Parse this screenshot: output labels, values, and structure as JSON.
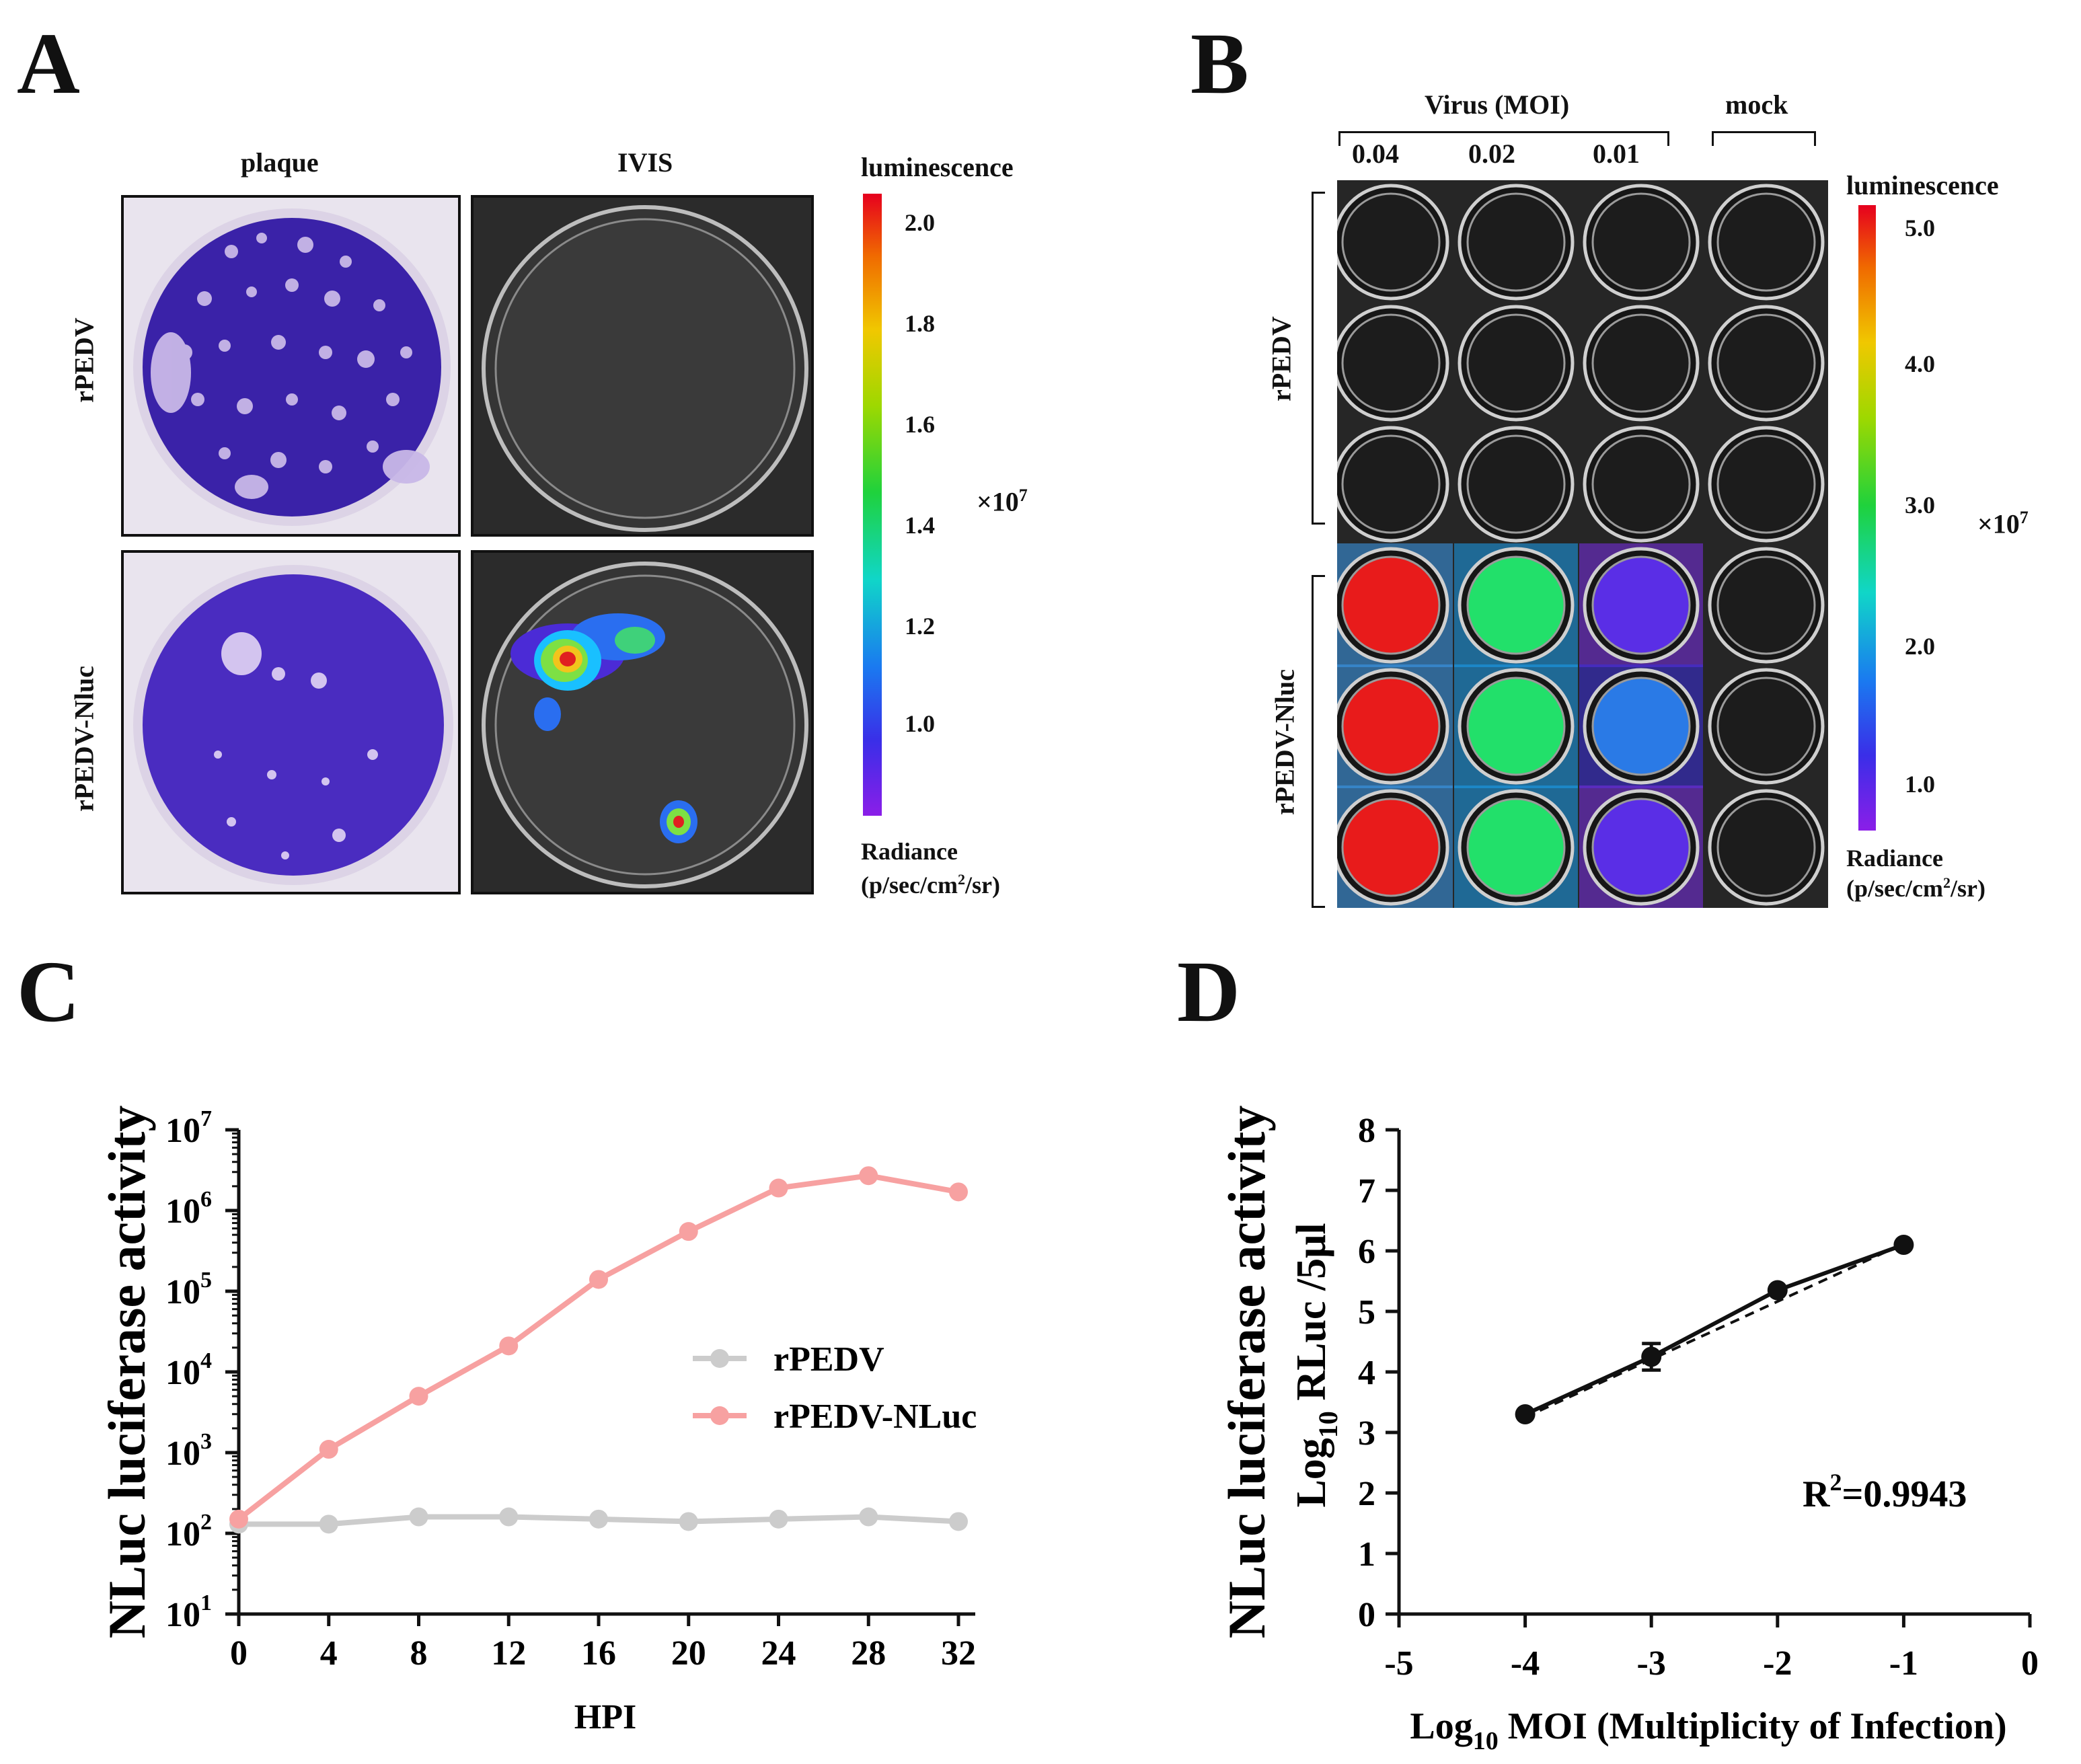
{
  "panels": {
    "a": "A",
    "b": "B",
    "c": "C",
    "d": "D"
  },
  "panel_a": {
    "columns": [
      "plaque",
      "IVIS"
    ],
    "rows": [
      "rPEDV",
      "rPEDV-Nluc"
    ],
    "colorbar": {
      "title": "luminescence",
      "ticks": [
        "2.0",
        "1.8",
        "1.6",
        "1.4",
        "1.2",
        "1.0"
      ],
      "multiplier": "×10",
      "multiplier_exp": "7",
      "unit_line1": "Radiance",
      "unit_line2_a": "(p/sec/cm",
      "unit_line2_sup": "2",
      "unit_line2_b": "/sr)"
    }
  },
  "panel_b": {
    "group_virus": "Virus (MOI)",
    "group_mock": "mock",
    "moi": [
      "0.04",
      "0.02",
      "0.01"
    ],
    "rows": [
      "rPEDV",
      "rPEDV-Nluc"
    ],
    "colorbar": {
      "title": "luminescence",
      "ticks": [
        "5.0",
        "4.0",
        "3.0",
        "2.0",
        "1.0"
      ],
      "multiplier": "×10",
      "multiplier_exp": "7",
      "unit_line1": "Radiance",
      "unit_line2_a": "(p/sec/cm",
      "unit_line2_sup": "2",
      "unit_line2_b": "/sr)"
    },
    "well_levels": [
      [
        null,
        null,
        null,
        null
      ],
      [
        null,
        null,
        null,
        null
      ],
      [
        null,
        null,
        null,
        null
      ],
      [
        "red",
        "green",
        "violet",
        null
      ],
      [
        "red",
        "green",
        "blue",
        null
      ],
      [
        "red",
        "green",
        "violet",
        null
      ]
    ]
  },
  "chart_data": [
    {
      "type": "line",
      "panel": "C",
      "ylabel": "NLuc luciferase activity",
      "xlabel": "HPI",
      "x": [
        0,
        4,
        8,
        12,
        16,
        20,
        24,
        28,
        32
      ],
      "xlim": [
        0,
        32
      ],
      "y_scale": "log",
      "ylim": [
        10,
        10000000
      ],
      "y_ticks": [
        {
          "base": "10",
          "exp": "1"
        },
        {
          "base": "10",
          "exp": "2"
        },
        {
          "base": "10",
          "exp": "3"
        },
        {
          "base": "10",
          "exp": "4"
        },
        {
          "base": "10",
          "exp": "5"
        },
        {
          "base": "10",
          "exp": "6"
        },
        {
          "base": "10",
          "exp": "7"
        }
      ],
      "series": [
        {
          "name": "rPEDV",
          "color": "#cccccc",
          "values": [
            130,
            130,
            160,
            160,
            150,
            140,
            150,
            160,
            140
          ]
        },
        {
          "name": "rPEDV-NLuc",
          "color": "#f7a1a1",
          "values": [
            150,
            1100,
            5000,
            21000,
            140000,
            550000,
            1900000,
            2700000,
            1700000
          ]
        }
      ],
      "legend": "center-right"
    },
    {
      "type": "scatter",
      "panel": "D",
      "ylabel_outer": "NLuc luciferase activity",
      "ylabel_inner": {
        "pre": "Log",
        "sub": "10",
        "post": " RLuc /5μl"
      },
      "xlabel": {
        "pre": "Log",
        "sub": "10",
        "post": " MOI  (Multiplicity of Infection)"
      },
      "x": [
        -4,
        -3,
        -2,
        -1
      ],
      "y": [
        3.3,
        4.25,
        5.35,
        6.1
      ],
      "y_err": [
        0,
        0.22,
        0,
        0
      ],
      "xlim": [
        -5,
        0
      ],
      "ylim": [
        0,
        8
      ],
      "x_ticks": [
        "-5",
        "-4",
        "-3",
        "-2",
        "-1",
        "0"
      ],
      "y_ticks": [
        "0",
        "1",
        "2",
        "3",
        "4",
        "5",
        "6",
        "7",
        "8"
      ],
      "fit": {
        "x": [
          -4,
          -1
        ],
        "y": [
          3.25,
          6.12
        ],
        "style": "dashed"
      },
      "annotation": {
        "pre": "R",
        "sup": "2",
        "post": "=0.9943"
      }
    }
  ]
}
